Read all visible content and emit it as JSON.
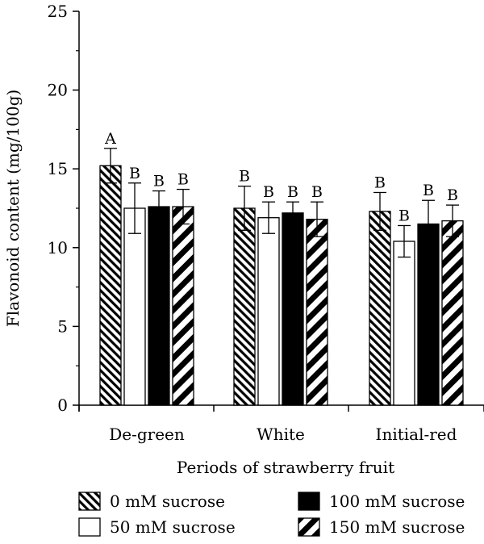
{
  "chart_data": {
    "type": "bar",
    "xlabel": "Periods of strawberry fruit",
    "ylabel": "Flavonoid content (mg/100g)",
    "ylim": [
      0,
      25
    ],
    "yticks": [
      0,
      5,
      10,
      15,
      20,
      25
    ],
    "categories": [
      "De-green",
      "White",
      "Initial-red"
    ],
    "legend_position": "bottom",
    "series": [
      {
        "name": "0 mM sucrose",
        "pattern": "fine-diagonal-hatch",
        "values": [
          15.2,
          12.5,
          12.3
        ],
        "errors": [
          1.1,
          1.4,
          1.2
        ],
        "letters": [
          "A",
          "B",
          "B"
        ]
      },
      {
        "name": "50 mM sucrose",
        "pattern": "white",
        "values": [
          12.5,
          11.9,
          10.4
        ],
        "errors": [
          1.6,
          1.0,
          1.0
        ],
        "letters": [
          "B",
          "B",
          "B"
        ]
      },
      {
        "name": "100 mM sucrose",
        "pattern": "solid-black",
        "values": [
          12.6,
          12.2,
          11.5
        ],
        "errors": [
          1.0,
          0.7,
          1.5
        ],
        "letters": [
          "B",
          "B",
          "B"
        ]
      },
      {
        "name": "150 mM sucrose",
        "pattern": "coarse-diagonal-stripes",
        "values": [
          12.6,
          11.8,
          11.7
        ],
        "errors": [
          1.1,
          1.1,
          1.0
        ],
        "letters": [
          "B",
          "B",
          "B"
        ]
      }
    ]
  }
}
